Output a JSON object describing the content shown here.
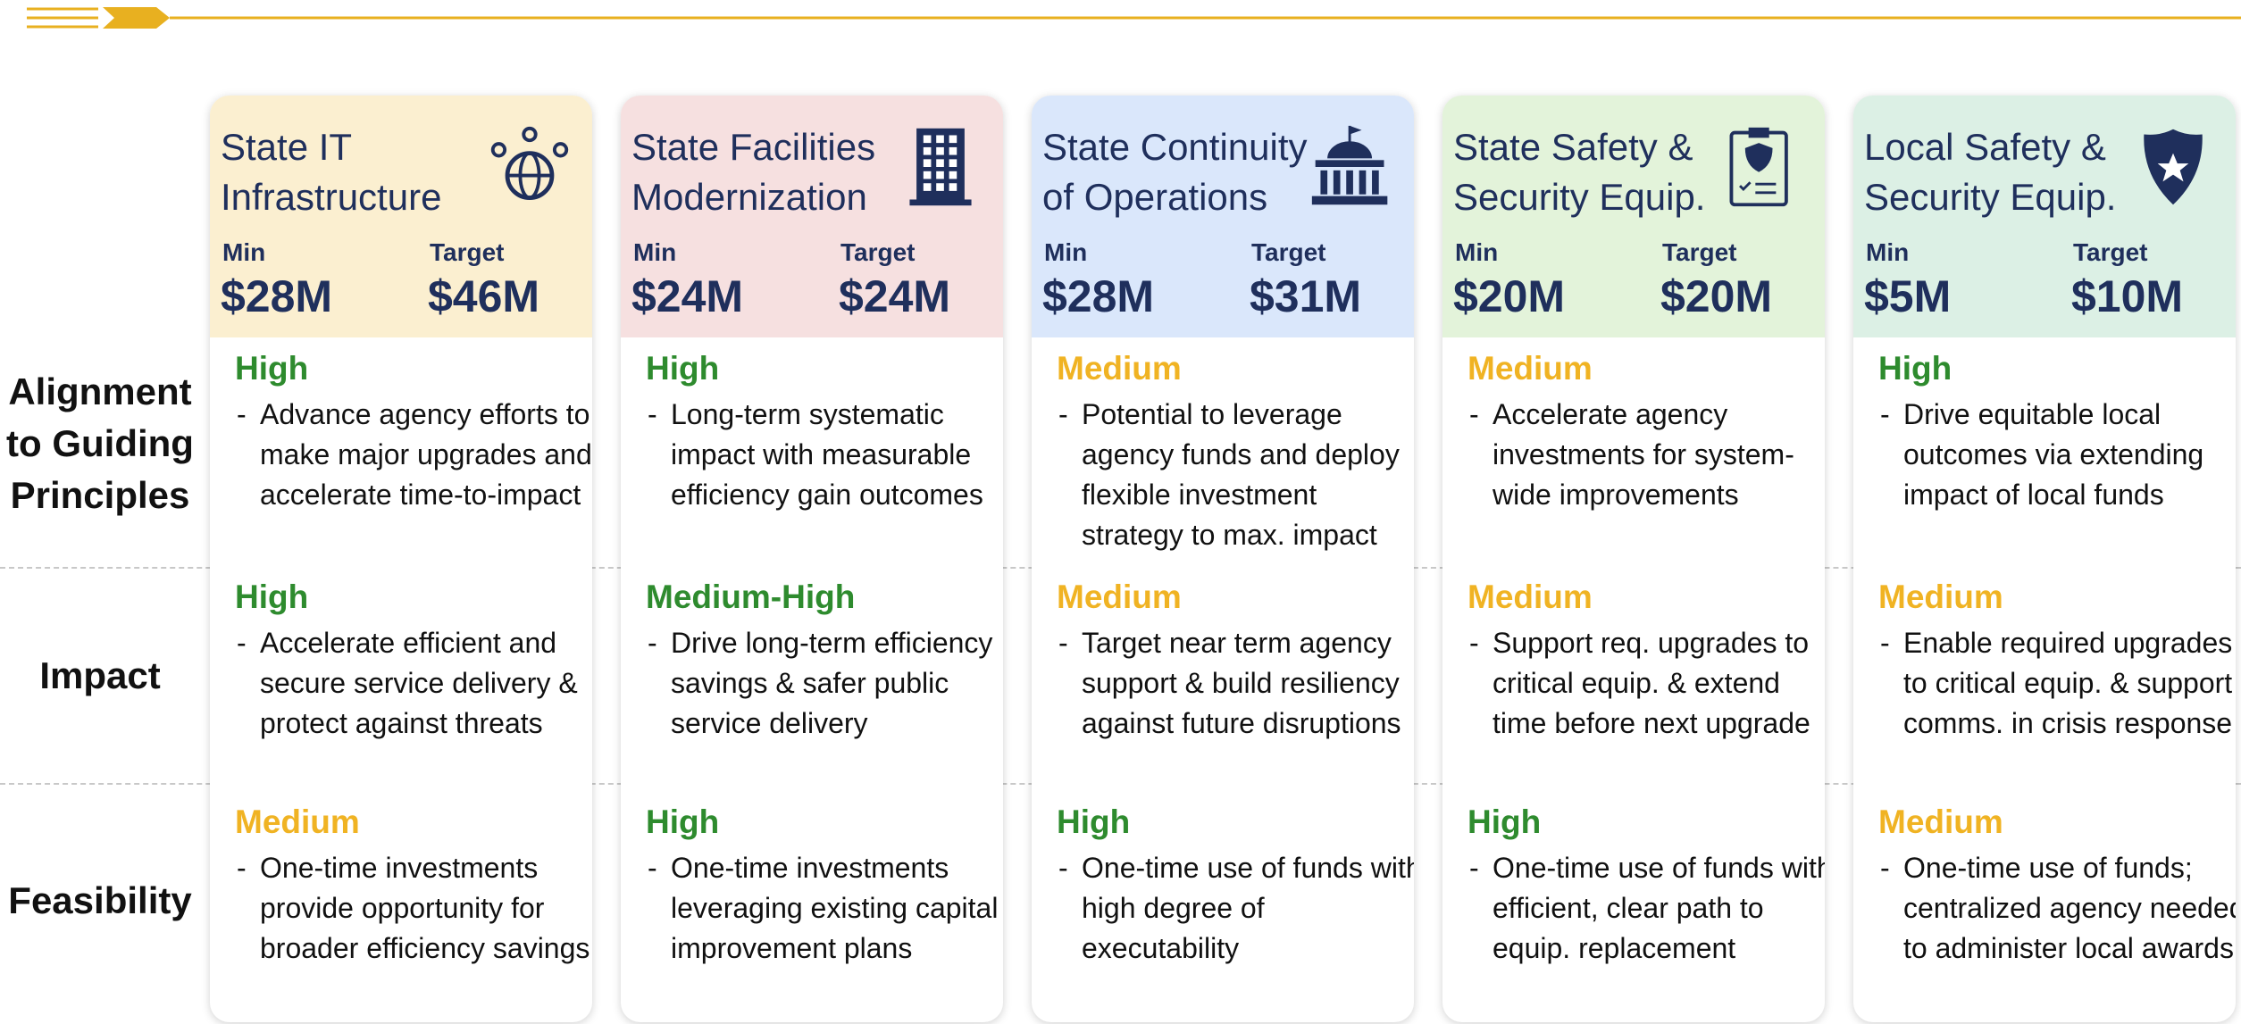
{
  "row_labels": [
    "Alignment to Guiding Principles",
    "Impact",
    "Feasibility"
  ],
  "columns": [
    {
      "title": [
        "State IT",
        "Infrastructure"
      ],
      "color": "#fbefd0",
      "min": {
        "label": "Min",
        "value": "$28M"
      },
      "target": {
        "label": "Target",
        "value": "$46M"
      },
      "ratings": [
        {
          "level": "High",
          "text": "Advance agency efforts to make major upgrades and accelerate time-to-impact"
        },
        {
          "level": "High",
          "text": "Accelerate efficient and secure service delivery & protect against threats"
        },
        {
          "level": "Medium",
          "text": "One-time investments provide opportunity for broader efficiency savings"
        }
      ]
    },
    {
      "title": [
        "State Facilities",
        "Modernization"
      ],
      "color": "#f6e0e0",
      "min": {
        "label": "Min",
        "value": "$24M"
      },
      "target": {
        "label": "Target",
        "value": "$24M"
      },
      "ratings": [
        {
          "level": "High",
          "text": "Long-term systematic impact with measurable efficiency gain outcomes"
        },
        {
          "level": "Medium-High",
          "text": "Drive long-term efficiency savings & safer public service delivery"
        },
        {
          "level": "High",
          "text": "One-time investments leveraging existing capital improvement plans"
        }
      ]
    },
    {
      "title": [
        "State Continuity",
        "of Operations"
      ],
      "color": "#dae7fb",
      "min": {
        "label": "Min",
        "value": "$28M"
      },
      "target": {
        "label": "Target",
        "value": "$31M"
      },
      "ratings": [
        {
          "level": "Medium",
          "text": "Potential to leverage agency funds and deploy flexible investment strategy to max. impact"
        },
        {
          "level": "Medium",
          "text": "Target near term agency support & build resiliency against future disruptions"
        },
        {
          "level": "High",
          "text": "One-time use of funds with high degree of executability"
        }
      ]
    },
    {
      "title": [
        "State Safety &",
        "Security Equip."
      ],
      "color": "#e3f3da",
      "min": {
        "label": "Min",
        "value": "$20M"
      },
      "target": {
        "label": "Target",
        "value": "$20M"
      },
      "ratings": [
        {
          "level": "Medium",
          "text": "Accelerate agency investments for system-wide improvements"
        },
        {
          "level": "Medium",
          "text": "Support req. upgrades to critical equip. & extend time before next upgrade"
        },
        {
          "level": "High",
          "text": "One-time use of funds with efficient, clear path to equip. replacement"
        }
      ]
    },
    {
      "title": [
        "Local Safety &",
        "Security Equip."
      ],
      "color": "#dcf0e5",
      "min": {
        "label": "Min",
        "value": "$5M"
      },
      "target": {
        "label": "Target",
        "value": "$10M"
      },
      "ratings": [
        {
          "level": "High",
          "text": "Drive equitable local outcomes via extending impact of local funds"
        },
        {
          "level": "Medium",
          "text": "Enable required upgrades to critical equip. & support comms. in crisis response"
        },
        {
          "level": "Medium",
          "text": "One-time use of funds; centralized agency needed to administer local awards"
        }
      ]
    }
  ]
}
